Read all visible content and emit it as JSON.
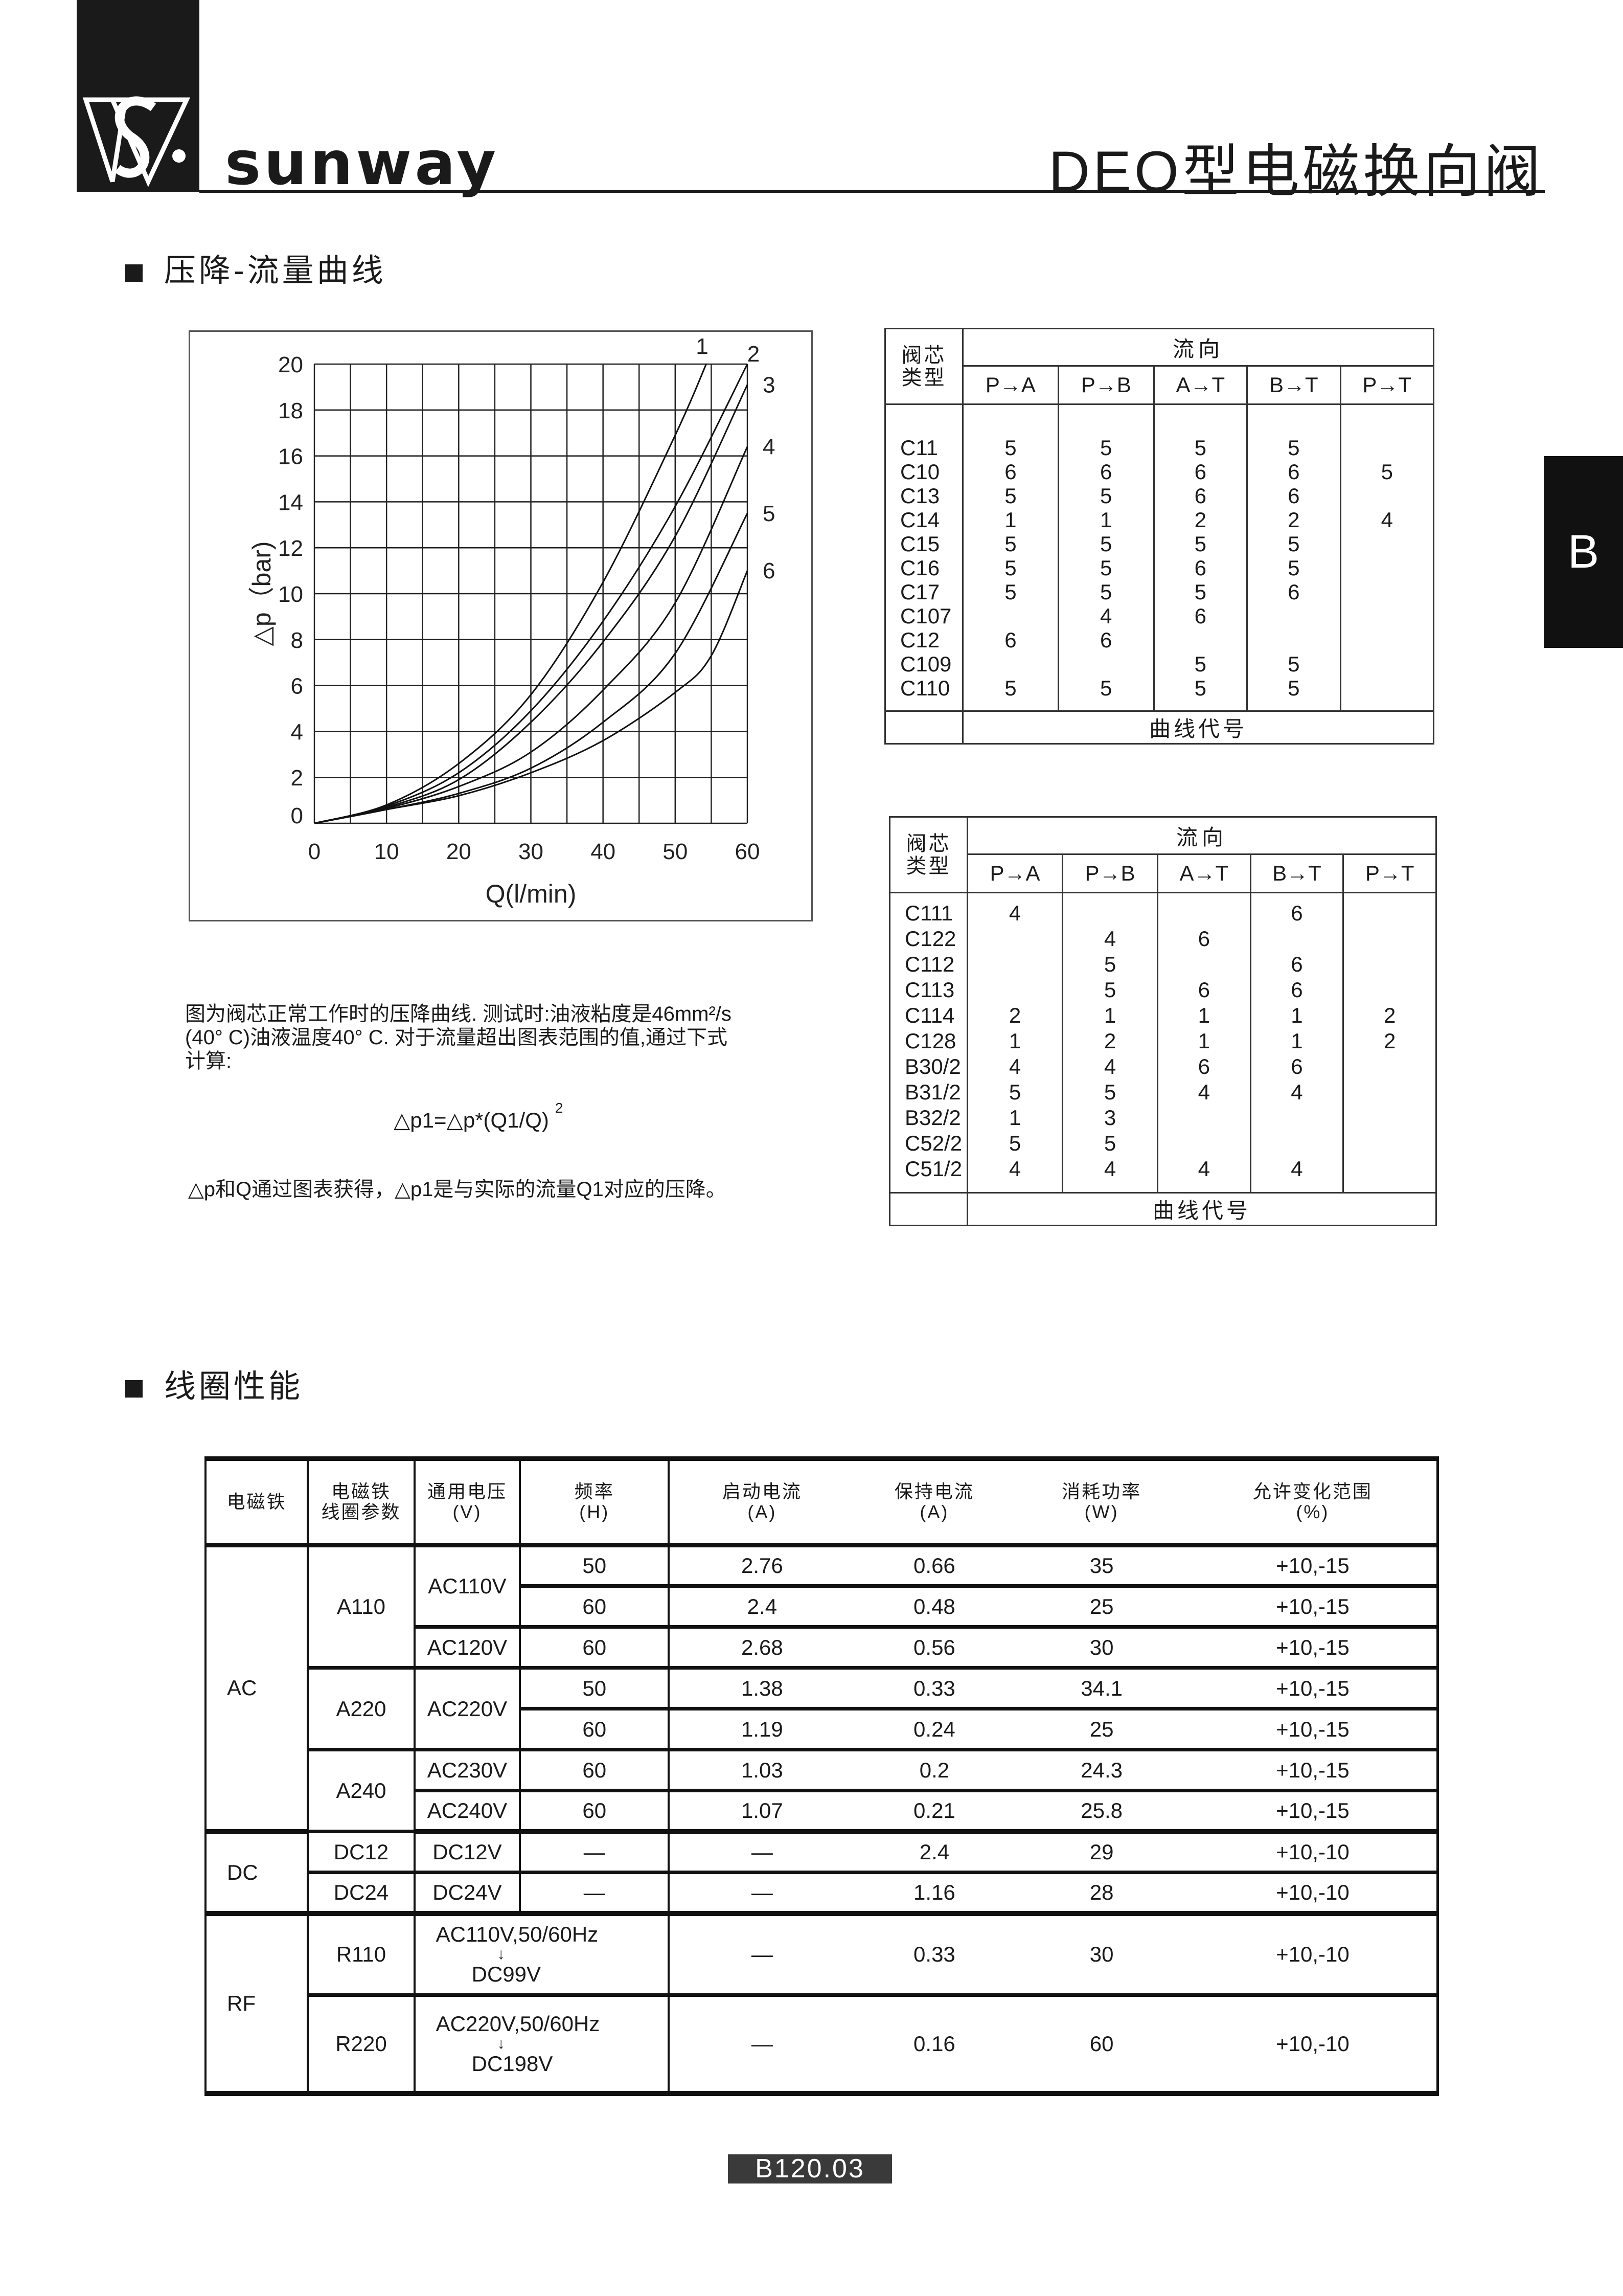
{
  "header": {
    "brand": "sunway",
    "title": "DEO型电磁换向阀",
    "side_tab": "B"
  },
  "section1": {
    "heading": "压降-流量曲线",
    "note_lines": [
      "图为阀芯正常工作时的压降曲线. 测试时:油液粘度是46mm²/s",
      "(40° C)油液温度40° C. 对于流量超出图表范围的值,通过下式",
      "计算:"
    ],
    "formula": "△p1=△p*(Q1/Q)",
    "formula_exp": "2",
    "note2": "△p和Q通过图表获得，△p1是与实际的流量Q1对应的压降。"
  },
  "chart_data": {
    "type": "line",
    "xlabel": "Q(l/min)",
    "ylabel": "△p（bar)",
    "xlim": [
      0,
      60
    ],
    "ylim": [
      0,
      20
    ],
    "xticks": [
      0,
      10,
      20,
      30,
      40,
      50,
      60
    ],
    "yticks": [
      0,
      2,
      4,
      6,
      8,
      10,
      12,
      14,
      16,
      18,
      20
    ],
    "grid": true,
    "series": [
      {
        "name": "1",
        "points": [
          [
            0,
            0
          ],
          [
            10,
            0.8
          ],
          [
            20,
            2.6
          ],
          [
            30,
            5.6
          ],
          [
            40,
            10.5
          ],
          [
            50,
            16.9
          ],
          [
            54.3,
            20
          ]
        ]
      },
      {
        "name": "2",
        "points": [
          [
            0,
            0
          ],
          [
            10,
            0.75
          ],
          [
            20,
            2.2
          ],
          [
            30,
            4.9
          ],
          [
            40,
            8.8
          ],
          [
            50,
            13.8
          ],
          [
            60,
            20
          ]
        ]
      },
      {
        "name": "3",
        "points": [
          [
            0,
            0
          ],
          [
            10,
            0.7
          ],
          [
            20,
            1.9
          ],
          [
            30,
            4.4
          ],
          [
            40,
            7.9
          ],
          [
            50,
            12.5
          ],
          [
            60,
            19.1
          ]
        ]
      },
      {
        "name": "4",
        "points": [
          [
            0,
            0
          ],
          [
            10,
            0.65
          ],
          [
            20,
            1.6
          ],
          [
            30,
            3.1
          ],
          [
            40,
            5.8
          ],
          [
            50,
            9.6
          ],
          [
            60,
            16.4
          ]
        ]
      },
      {
        "name": "5",
        "points": [
          [
            0,
            0
          ],
          [
            10,
            0.6
          ],
          [
            20,
            1.3
          ],
          [
            30,
            2.4
          ],
          [
            40,
            4.4
          ],
          [
            50,
            7.4
          ],
          [
            60,
            13.5
          ]
        ]
      },
      {
        "name": "6",
        "points": [
          [
            0,
            0
          ],
          [
            10,
            0.6
          ],
          [
            20,
            1.2
          ],
          [
            30,
            2.2
          ],
          [
            40,
            3.6
          ],
          [
            50,
            5.7
          ],
          [
            55,
            7.3
          ],
          [
            60,
            11
          ]
        ]
      }
    ]
  },
  "spool_tables": {
    "type_header": "阀芯类型",
    "flow_header": "流向",
    "directions": [
      "P→A",
      "P→B",
      "A→T",
      "B→T",
      "P→T"
    ],
    "footer": "曲线代号",
    "table1": [
      [
        "C11",
        "5",
        "5",
        "5",
        "5",
        ""
      ],
      [
        "C10",
        "6",
        "6",
        "6",
        "6",
        "5"
      ],
      [
        "C13",
        "5",
        "5",
        "6",
        "6",
        ""
      ],
      [
        "C14",
        "1",
        "1",
        "2",
        "2",
        "4"
      ],
      [
        "C15",
        "5",
        "5",
        "5",
        "5",
        ""
      ],
      [
        "C16",
        "5",
        "5",
        "6",
        "5",
        ""
      ],
      [
        "C17",
        "5",
        "5",
        "5",
        "6",
        ""
      ],
      [
        "C107",
        "",
        "4",
        "6",
        "",
        ""
      ],
      [
        "C12",
        "6",
        "6",
        "",
        "",
        ""
      ],
      [
        "C109",
        "",
        "",
        "5",
        "5",
        ""
      ],
      [
        "C110",
        "5",
        "5",
        "5",
        "5",
        ""
      ]
    ],
    "table2": [
      [
        "C111",
        "4",
        "",
        "",
        "6",
        ""
      ],
      [
        "C122",
        "",
        "4",
        "6",
        "",
        ""
      ],
      [
        "C112",
        "",
        "5",
        "",
        "6",
        ""
      ],
      [
        "C113",
        "",
        "5",
        "6",
        "6",
        ""
      ],
      [
        "C114",
        "2",
        "1",
        "1",
        "1",
        "2"
      ],
      [
        "C128",
        "1",
        "2",
        "1",
        "1",
        "2"
      ],
      [
        "B30/2",
        "4",
        "4",
        "6",
        "6",
        ""
      ],
      [
        "B31/2",
        "5",
        "5",
        "4",
        "4",
        ""
      ],
      [
        "B32/2",
        "1",
        "3",
        "",
        "",
        ""
      ],
      [
        "C52/2",
        "5",
        "5",
        "",
        "",
        ""
      ],
      [
        "C51/2",
        "4",
        "4",
        "4",
        "4",
        ""
      ]
    ]
  },
  "section2": {
    "heading": "线圈性能",
    "columns": [
      [
        "电磁铁"
      ],
      [
        "电磁铁",
        "线圈参数"
      ],
      [
        "通用电压",
        "(V)"
      ],
      [
        "频率",
        "(H)"
      ],
      [
        "启动电流",
        "(A)"
      ],
      [
        "保持电流",
        "(A)"
      ],
      [
        "消耗功率",
        "(W)"
      ],
      [
        "允许变化范围",
        "(%)"
      ]
    ],
    "groups": [
      {
        "type": "AC",
        "coils": [
          {
            "coil": "A110",
            "voltages": [
              {
                "v": "AC110V",
                "rows": [
                  {
                    "f": "50",
                    "start": "2.76",
                    "hold": "0.66",
                    "power": "35",
                    "range": "+10,-15"
                  },
                  {
                    "f": "60",
                    "start": "2.4",
                    "hold": "0.48",
                    "power": "25",
                    "range": "+10,-15"
                  }
                ]
              },
              {
                "v": "AC120V",
                "rows": [
                  {
                    "f": "60",
                    "start": "2.68",
                    "hold": "0.56",
                    "power": "30",
                    "range": "+10,-15"
                  }
                ]
              }
            ]
          },
          {
            "coil": "A220",
            "voltages": [
              {
                "v": "AC220V",
                "rows": [
                  {
                    "f": "50",
                    "start": "1.38",
                    "hold": "0.33",
                    "power": "34.1",
                    "range": "+10,-15"
                  },
                  {
                    "f": "60",
                    "start": "1.19",
                    "hold": "0.24",
                    "power": "25",
                    "range": "+10,-15"
                  }
                ]
              }
            ]
          },
          {
            "coil": "A240",
            "voltages": [
              {
                "v": "AC230V",
                "rows": [
                  {
                    "f": "60",
                    "start": "1.03",
                    "hold": "0.2",
                    "power": "24.3",
                    "range": "+10,-15"
                  }
                ]
              },
              {
                "v": "AC240V",
                "rows": [
                  {
                    "f": "60",
                    "start": "1.07",
                    "hold": "0.21",
                    "power": "25.8",
                    "range": "+10,-15"
                  }
                ]
              }
            ]
          }
        ]
      },
      {
        "type": "DC",
        "coils": [
          {
            "coil": "DC12",
            "voltages": [
              {
                "v": "DC12V",
                "rows": [
                  {
                    "f": "—",
                    "start": "—",
                    "hold": "2.4",
                    "power": "29",
                    "range": "+10,-10"
                  }
                ]
              }
            ]
          },
          {
            "coil": "DC24",
            "voltages": [
              {
                "v": "DC24V",
                "rows": [
                  {
                    "f": "—",
                    "start": "—",
                    "hold": "1.16",
                    "power": "28",
                    "range": "+10,-10"
                  }
                ]
              }
            ]
          }
        ]
      },
      {
        "type": "RF",
        "coils": [
          {
            "coil": "R110",
            "voltages": [
              {
                "v": "AC110V,50/60Hz",
                "v2": "DC99V",
                "rows": [
                  {
                    "start": "—",
                    "hold": "0.33",
                    "power": "30",
                    "range": "+10,-10"
                  }
                ]
              }
            ]
          },
          {
            "coil": "R220",
            "voltages": [
              {
                "v": "AC220V,50/60Hz",
                "v2": "DC198V",
                "rows": [
                  {
                    "start": "—",
                    "hold": "0.16",
                    "power": "60",
                    "range": "+10,-10"
                  }
                ]
              }
            ]
          }
        ]
      }
    ]
  },
  "footer": {
    "page": "B120.03"
  }
}
